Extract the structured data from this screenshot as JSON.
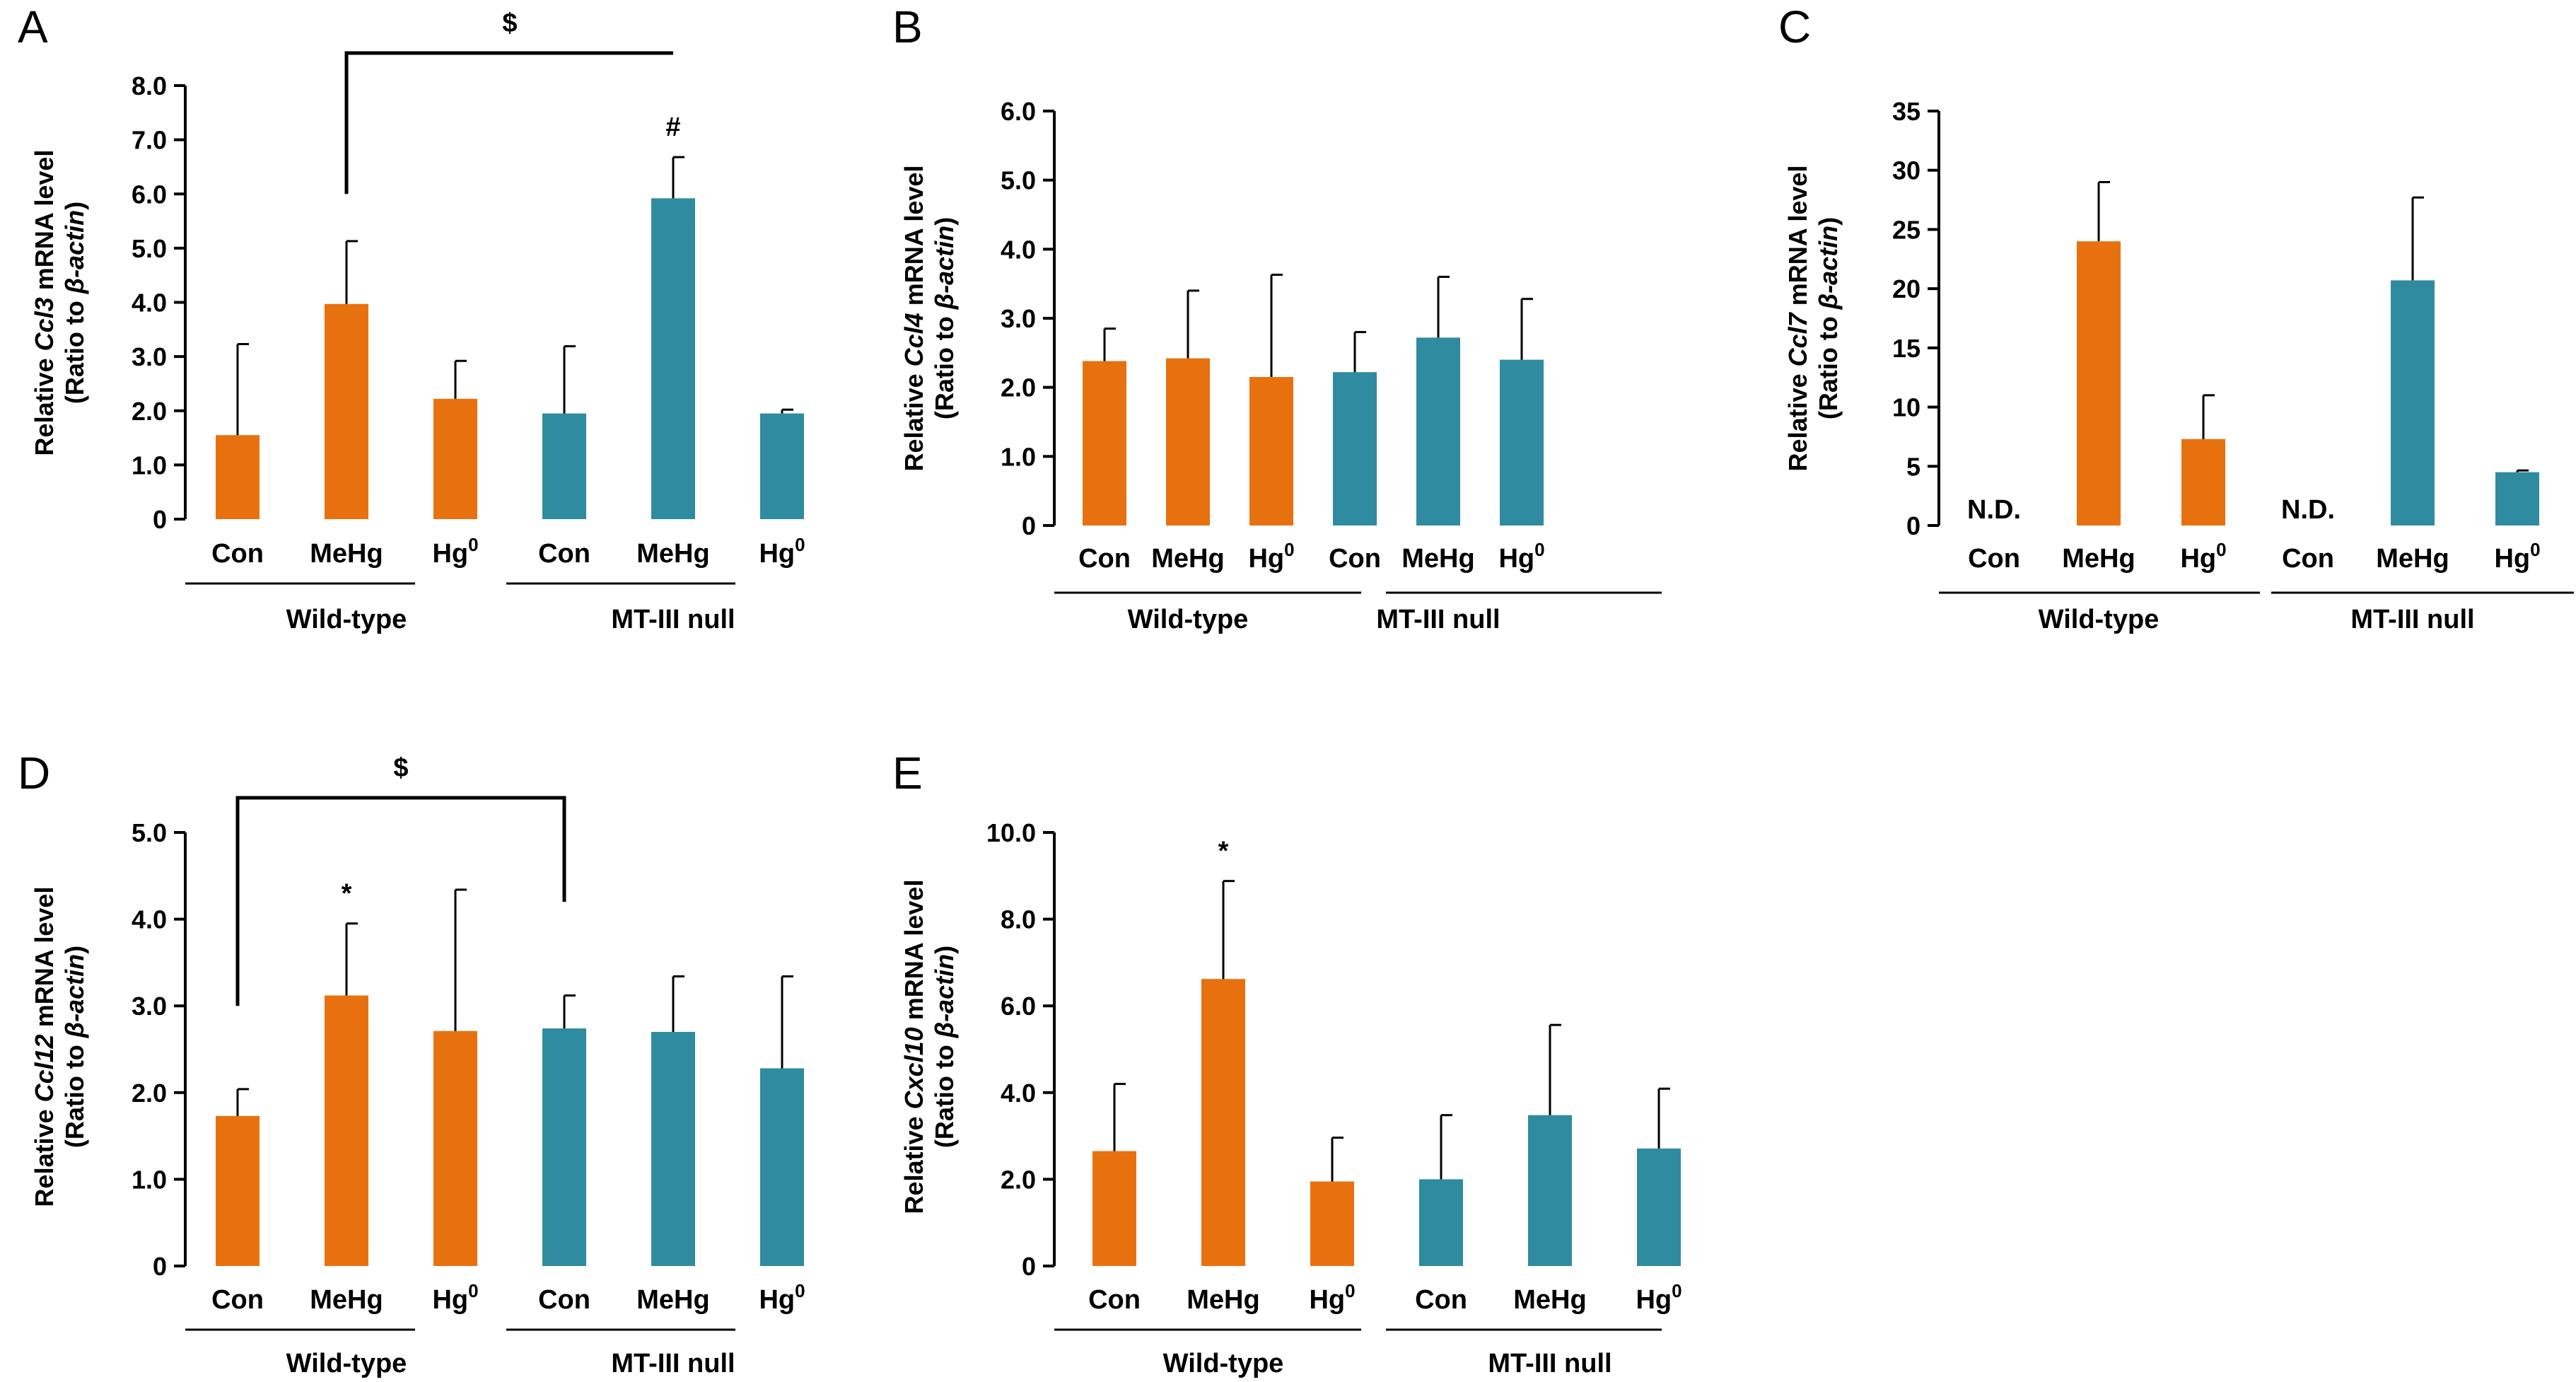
{
  "colors": {
    "wild_type": "#e8710f",
    "mt_null": "#2f8ba0",
    "axis": "#000000"
  },
  "chart_data": [
    {
      "panel": "A",
      "type": "bar",
      "ylabel_line1": [
        "Relative ",
        "Ccl3",
        " mRNA level"
      ],
      "ylabel_line2": [
        "(Ratio to ",
        "β-actin",
        ")"
      ],
      "ylim": [
        0,
        8
      ],
      "yticks": [
        0,
        1,
        2,
        3,
        4,
        5,
        6,
        7,
        8
      ],
      "ytick_labels": [
        "0",
        "1.0",
        "2.0",
        "3.0",
        "4.0",
        "5.0",
        "6.0",
        "7.0",
        "8.0"
      ],
      "categories": [
        "Con",
        "MeHg",
        "Hg",
        "Con",
        "MeHg",
        "Hg"
      ],
      "superscripts": [
        "",
        "",
        "0",
        "",
        "",
        "0"
      ],
      "values": [
        1.55,
        3.97,
        2.22,
        1.95,
        5.92,
        1.95
      ],
      "errors": [
        1.68,
        1.16,
        0.7,
        1.24,
        0.76,
        0.07
      ],
      "groups": [
        "Wild-type",
        "MT-III null"
      ],
      "marks": [
        "",
        "",
        "",
        "",
        "#",
        ""
      ],
      "nd": [
        "",
        "",
        "",
        "",
        "",
        ""
      ],
      "bracket": {
        "from": 1,
        "to": 4,
        "label": "$",
        "left_y": 6.0,
        "right_y": 8.6,
        "top_y": 8.6
      }
    },
    {
      "panel": "B",
      "type": "bar",
      "ylabel_line1": [
        "Relative ",
        "Ccl4",
        " mRNA level"
      ],
      "ylabel_line2": [
        "(Ratio to ",
        "β-actin",
        ")"
      ],
      "ylim": [
        0,
        6
      ],
      "yticks": [
        0,
        1,
        2,
        3,
        4,
        5,
        6
      ],
      "ytick_labels": [
        "0",
        "1.0",
        "2.0",
        "3.0",
        "4.0",
        "5.0",
        "6.0"
      ],
      "categories": [
        "Con",
        "MeHg",
        "Hg",
        "Con",
        "MeHg",
        "Hg"
      ],
      "superscripts": [
        "",
        "",
        "0",
        "",
        "",
        "0"
      ],
      "values": [
        2.38,
        2.42,
        2.15,
        2.22,
        2.72,
        2.4
      ],
      "errors": [
        0.47,
        0.98,
        1.48,
        0.58,
        0.88,
        0.88
      ],
      "groups": [
        "Wild-type",
        "MT-III null"
      ],
      "marks": [
        "",
        "",
        "",
        "",
        "",
        ""
      ],
      "nd": [
        "",
        "",
        "",
        "",
        "",
        ""
      ],
      "bracket": null
    },
    {
      "panel": "C",
      "type": "bar",
      "ylabel_line1": [
        "Relative ",
        "Ccl7",
        " mRNA level"
      ],
      "ylabel_line2": [
        "(Ratio to ",
        "β-actin",
        ")"
      ],
      "ylim": [
        0,
        35
      ],
      "yticks": [
        0,
        5,
        10,
        15,
        20,
        25,
        30,
        35
      ],
      "ytick_labels": [
        "0",
        "5",
        "10",
        "15",
        "20",
        "25",
        "30",
        "35"
      ],
      "categories": [
        "Con",
        "MeHg",
        "Hg",
        "Con",
        "MeHg",
        "Hg"
      ],
      "superscripts": [
        "",
        "",
        "0",
        "",
        "",
        "0"
      ],
      "values": [
        0,
        24.0,
        7.3,
        0,
        20.7,
        4.5
      ],
      "errors": [
        0,
        5.0,
        3.7,
        0,
        7.0,
        0.15
      ],
      "groups": [
        "Wild-type",
        "MT-III null"
      ],
      "marks": [
        "",
        "",
        "",
        "",
        "",
        ""
      ],
      "nd": [
        "N.D.",
        "",
        "",
        "N.D.",
        "",
        ""
      ],
      "bracket": null
    },
    {
      "panel": "D",
      "type": "bar",
      "ylabel_line1": [
        "Relative ",
        "Ccl12",
        " mRNA level"
      ],
      "ylabel_line2": [
        "(Ratio to ",
        "β-actin",
        ")"
      ],
      "ylim": [
        0,
        5
      ],
      "yticks": [
        0,
        1,
        2,
        3,
        4,
        5
      ],
      "ytick_labels": [
        "0",
        "1.0",
        "2.0",
        "3.0",
        "4.0",
        "5.0"
      ],
      "categories": [
        "Con",
        "MeHg",
        "Hg",
        "Con",
        "MeHg",
        "Hg"
      ],
      "superscripts": [
        "",
        "",
        "0",
        "",
        "",
        "0"
      ],
      "values": [
        1.73,
        3.12,
        2.71,
        2.74,
        2.7,
        2.28
      ],
      "errors": [
        0.31,
        0.83,
        1.63,
        0.38,
        0.64,
        1.06
      ],
      "groups": [
        "Wild-type",
        "MT-III null"
      ],
      "marks": [
        "",
        "*",
        "",
        "",
        "",
        ""
      ],
      "nd": [
        "",
        "",
        "",
        "",
        "",
        ""
      ],
      "bracket": {
        "from": 0,
        "to": 3,
        "label": "$",
        "left_y": 3.0,
        "right_y": 4.2,
        "top_y": 5.4
      }
    },
    {
      "panel": "E",
      "type": "bar",
      "ylabel_line1": [
        "Relative ",
        "Cxcl10",
        " mRNA level"
      ],
      "ylabel_line2": [
        "(Ratio to ",
        "β-actin",
        ")"
      ],
      "ylim": [
        0,
        10
      ],
      "yticks": [
        0,
        2,
        4,
        6,
        8,
        10
      ],
      "ytick_labels": [
        "0",
        "2.0",
        "4.0",
        "6.0",
        "8.0",
        "10.0"
      ],
      "categories": [
        "Con",
        "MeHg",
        "Hg",
        "Con",
        "MeHg",
        "Hg"
      ],
      "superscripts": [
        "",
        "",
        "0",
        "",
        "",
        "0"
      ],
      "values": [
        2.65,
        6.62,
        1.95,
        2.0,
        3.48,
        2.71
      ],
      "errors": [
        1.55,
        2.26,
        1.01,
        1.48,
        2.08,
        1.38
      ],
      "groups": [
        "Wild-type",
        "MT-III null"
      ],
      "marks": [
        "",
        "*",
        "",
        "",
        "",
        ""
      ],
      "nd": [
        "",
        "",
        "",
        "",
        "",
        ""
      ],
      "bracket": null
    }
  ]
}
